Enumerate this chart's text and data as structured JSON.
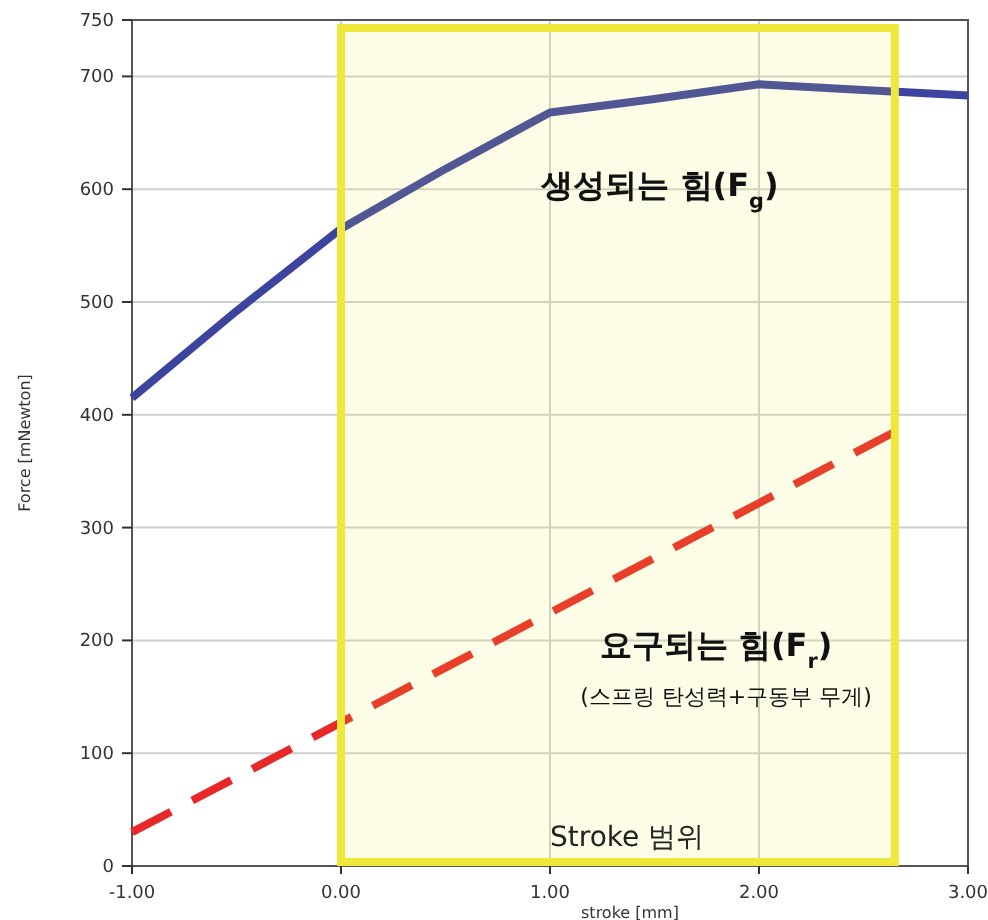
{
  "chart_data": {
    "type": "line",
    "xlabel": "stroke [mm]",
    "ylabel": "Force [mNewton]",
    "xlim": [
      -1,
      3
    ],
    "ylim": [
      0,
      750
    ],
    "xticks": [
      {
        "value": -1,
        "label": "-1.00"
      },
      {
        "value": 0,
        "label": "0.00"
      },
      {
        "value": 1,
        "label": "1.00"
      },
      {
        "value": 2,
        "label": "2.00"
      },
      {
        "value": 3,
        "label": "3.00"
      }
    ],
    "yticks": [
      0,
      100,
      200,
      300,
      400,
      500,
      600,
      700,
      750
    ],
    "grid": true,
    "series": [
      {
        "color": "#3c44a0",
        "line_style": "solid",
        "x": [
          -1,
          -0.5,
          0,
          0.5,
          1,
          1.5,
          2,
          2.5,
          3
        ],
        "values": [
          415,
          492,
          565,
          618,
          668,
          680,
          693,
          688,
          683
        ]
      },
      {
        "color": "#e82828",
        "line_style": "dashed",
        "x": [
          -1,
          2.65
        ],
        "values": [
          30,
          385
        ]
      }
    ],
    "bands": [
      {
        "axis": "x",
        "from": 0,
        "to": 2.65,
        "label": "Stroke 범위",
        "color": "#eee83a"
      }
    ],
    "annotations": [
      "생성되는 힘(F$_{g}$)",
      "요구되는 힘(F$_{r}$)",
      "(스프링 탄성력+구동부 무게)"
    ]
  }
}
